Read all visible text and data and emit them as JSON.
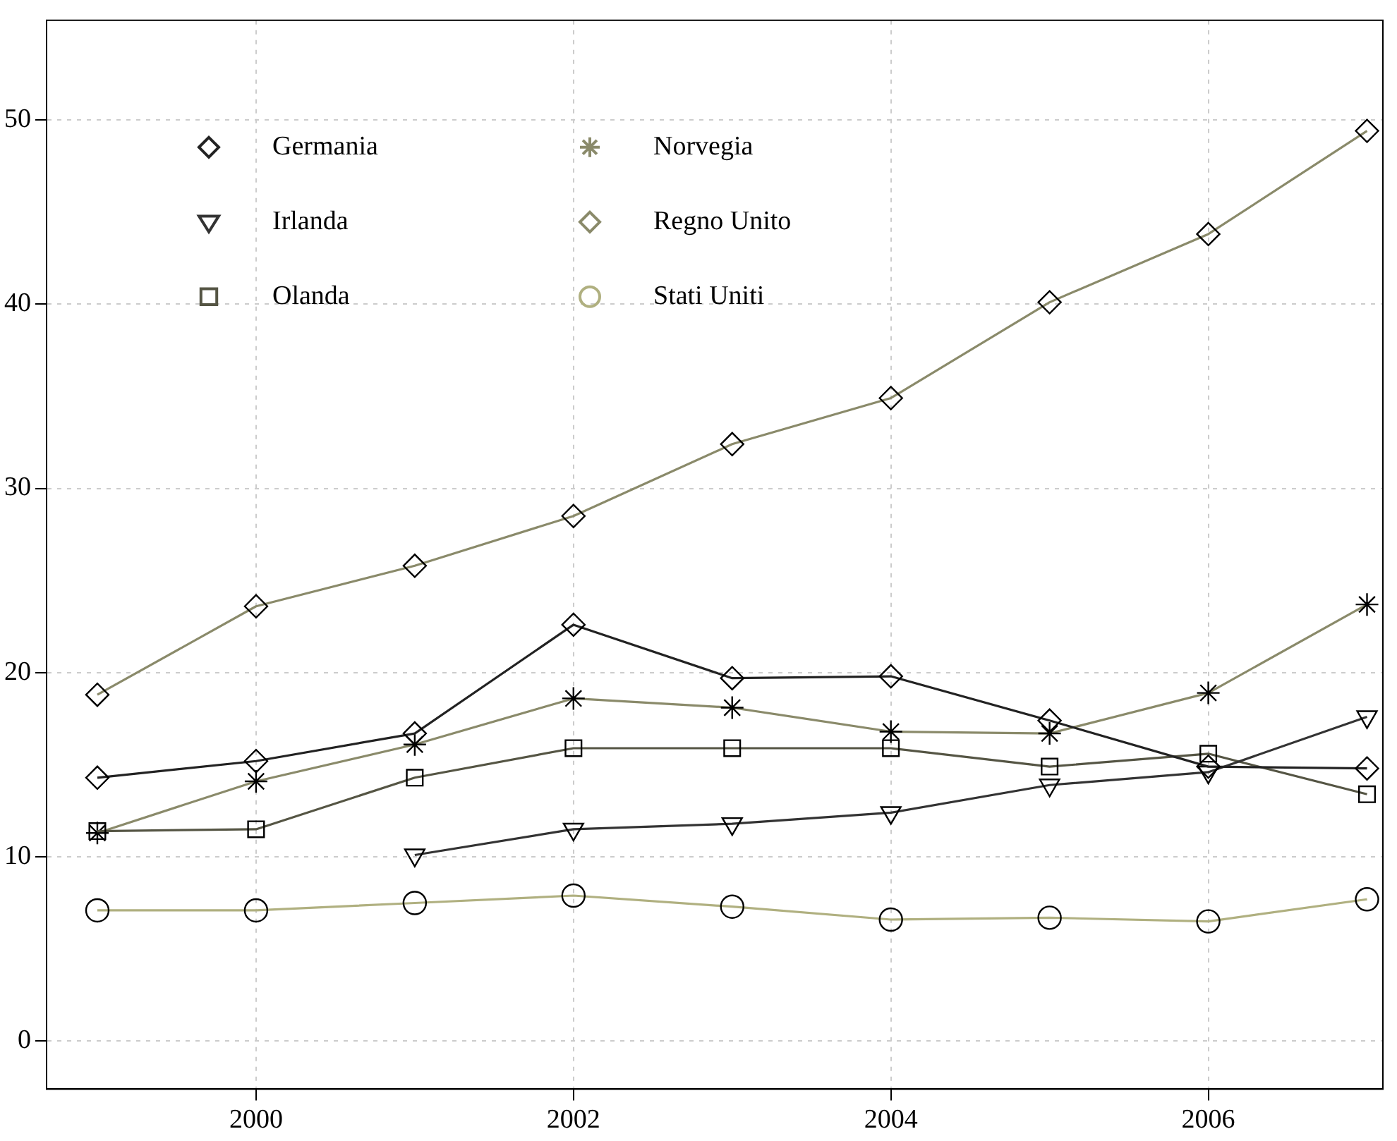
{
  "chart_data": {
    "type": "line",
    "x": [
      1999,
      2000,
      2001,
      2002,
      2003,
      2004,
      2005,
      2006,
      2007
    ],
    "series": [
      {
        "name": "Germania",
        "color": "#222222",
        "marker": "diamond",
        "values": [
          14.3,
          15.2,
          16.7,
          22.6,
          19.7,
          19.8,
          17.4,
          14.9,
          14.8
        ]
      },
      {
        "name": "Irlanda",
        "color": "#333333",
        "marker": "triangle",
        "values": [
          null,
          null,
          10.1,
          11.5,
          11.8,
          12.4,
          13.9,
          14.6,
          17.6
        ]
      },
      {
        "name": "Olanda",
        "color": "#555544",
        "marker": "square",
        "values": [
          11.4,
          11.5,
          14.3,
          15.9,
          15.9,
          15.9,
          14.9,
          15.6,
          13.4
        ]
      },
      {
        "name": "Norvegia",
        "color": "#8a8a6a",
        "marker": "cross",
        "values": [
          11.3,
          14.1,
          16.1,
          18.6,
          18.1,
          16.8,
          16.7,
          18.9,
          23.7
        ]
      },
      {
        "name": "Regno Unito",
        "color": "#8a8a6a",
        "marker": "diamond",
        "values": [
          18.8,
          23.6,
          25.8,
          28.5,
          32.4,
          34.9,
          40.1,
          43.8,
          49.4
        ]
      },
      {
        "name": "Stati Uniti",
        "color": "#b0b080",
        "marker": "circle",
        "values": [
          7.1,
          7.1,
          7.5,
          7.9,
          7.3,
          6.6,
          6.7,
          6.5,
          7.7
        ]
      }
    ],
    "xlim": [
      1998.68,
      2007.1
    ],
    "xticks": [
      2000,
      2002,
      2004,
      2006
    ],
    "ylim": [
      -2.6,
      55.4
    ],
    "yticks": [
      0,
      10,
      20,
      30,
      40,
      50
    ],
    "grid": true,
    "legend": "top left",
    "line_style": "solid"
  }
}
